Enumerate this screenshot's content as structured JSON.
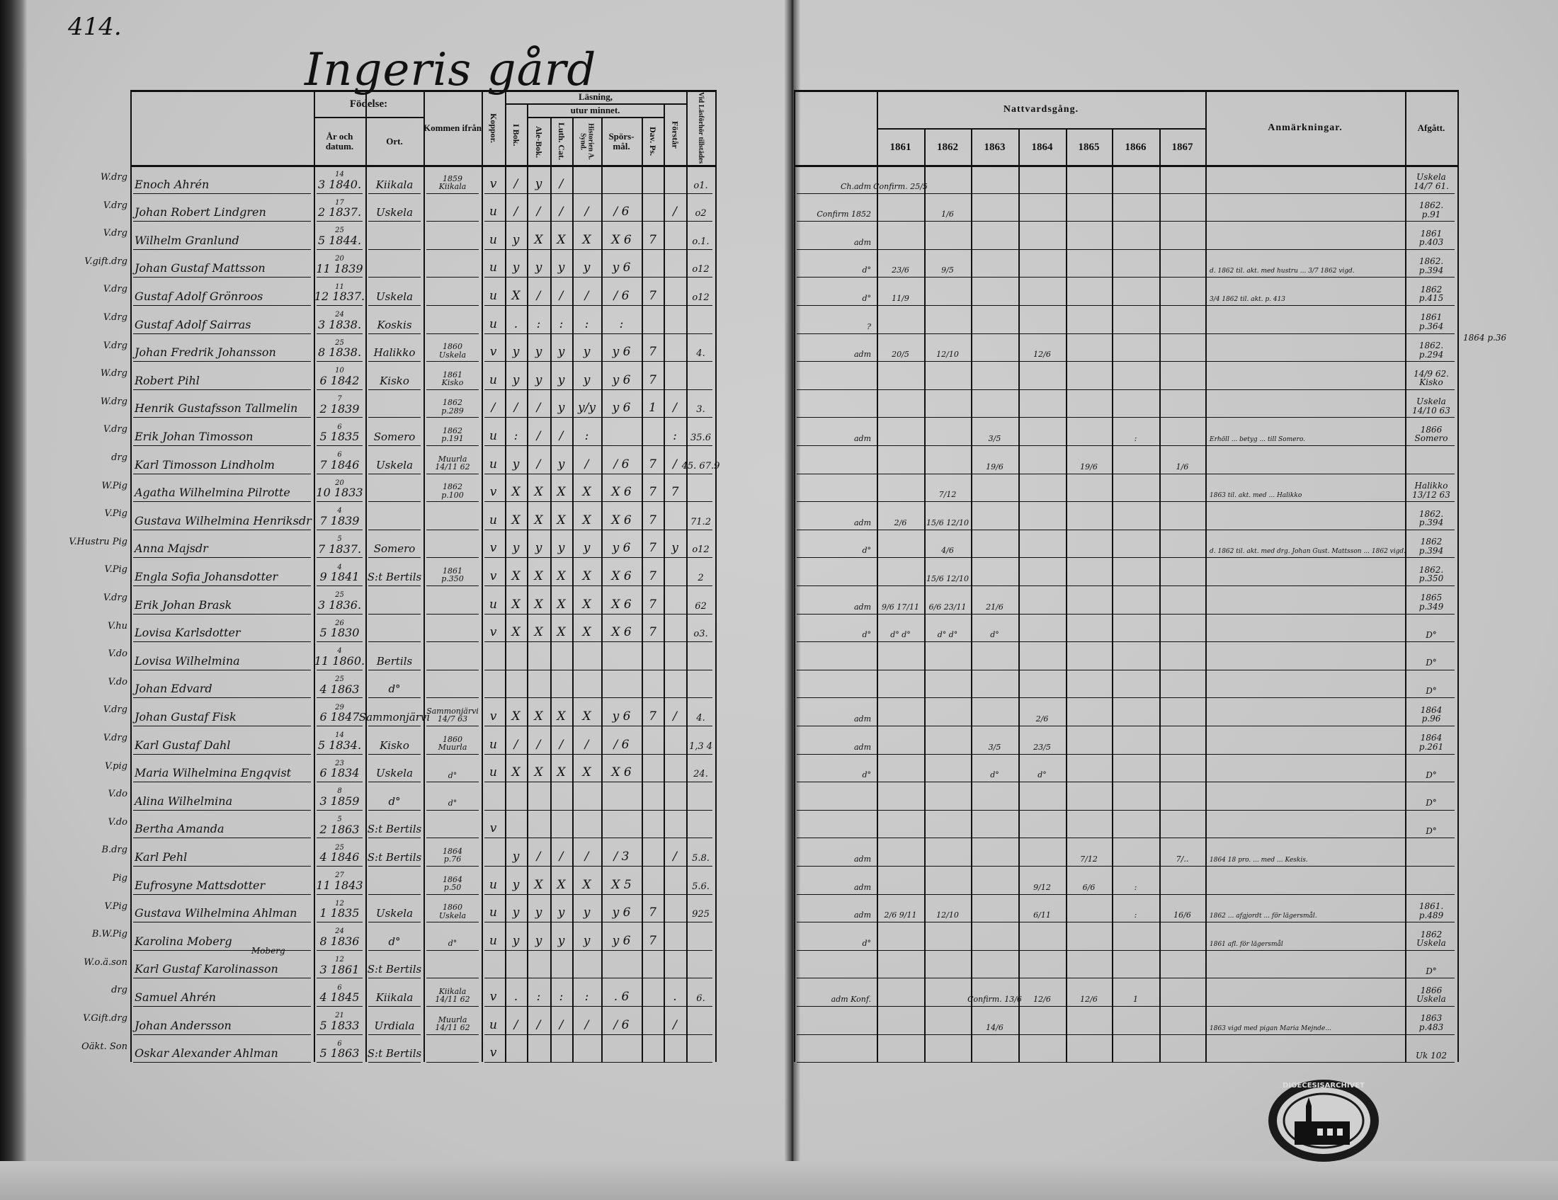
{
  "page_number": "414.",
  "title": "Ingeris gård",
  "header": {
    "fodelse": "Födelse:",
    "ar_datum": "År och datum.",
    "ort": "Ort.",
    "kommen_ifran": "Kommen ifrån",
    "koppor": "Koppor.",
    "lasning": "Läsning,",
    "utur_minnet": "utur minnet.",
    "i_bok": "I Bok.",
    "ale_bok": "Ale-Bok.",
    "luth_cat": "Luth. Cat.",
    "historien": "Historien A. Synd.",
    "sporsmal": "Spörs-mål.",
    "dav_ps": "Dav. Ps.",
    "forstar": "Förstår",
    "vid_lasforhor": "Vid Läsförhör tillstädes",
    "nattvardsgang": "Nattvardsgång.",
    "years": [
      "1861",
      "1862",
      "1863",
      "1864",
      "1865",
      "1866",
      "1867"
    ],
    "anmarkningar": "Anmärkningar.",
    "afgatt": "Afgått."
  },
  "rows": [
    {
      "prefix": "W.drg",
      "name": "Enoch Ahrén",
      "birth": [
        "14",
        "3 1840."
      ],
      "ort": "Kiikala",
      "from": [
        "1859",
        "Kiikala"
      ],
      "marks": [
        "v",
        "/",
        "y",
        "/",
        "",
        "",
        "",
        ""
      ],
      "vid": "o1.",
      "adm": "Ch.adm",
      "comm": [
        "Confirm. 25/5",
        "",
        "",
        "",
        "",
        "",
        ""
      ],
      "note": "",
      "afgatt": [
        "Uskela",
        "14/7 61."
      ]
    },
    {
      "prefix": "V.drg",
      "name": "Johan Robert Lindgren",
      "birth": [
        "17",
        "2 1837."
      ],
      "ort": "Uskela",
      "from": [
        "",
        ""
      ],
      "marks": [
        "u",
        "/",
        "/",
        "/",
        "/",
        "/ 6",
        "",
        "/"
      ],
      "vid": "o2",
      "adm": "Confirm 1852",
      "comm": [
        "",
        "1/6",
        "",
        "",
        "",
        "",
        ""
      ],
      "note": "",
      "afgatt": [
        "1862.",
        "p.91"
      ]
    },
    {
      "prefix": "V.drg",
      "name": "Wilhelm Granlund",
      "birth": [
        "25",
        "5 1844."
      ],
      "ort": "",
      "from": [
        "",
        ""
      ],
      "marks": [
        "u",
        "y",
        "X",
        "X",
        "X",
        "X 6",
        "7",
        ""
      ],
      "vid": "o.1.",
      "adm": "adm",
      "comm": [
        "",
        "",
        "",
        "",
        "",
        "",
        ""
      ],
      "note": "",
      "afgatt": [
        "1861",
        "p.403"
      ]
    },
    {
      "prefix": "V.gift.drg",
      "name": "Johan Gustaf Mattsson",
      "birth": [
        "20",
        "11 1839"
      ],
      "ort": "",
      "from": [
        "",
        ""
      ],
      "marks": [
        "u",
        "y",
        "y",
        "y",
        "y",
        "y 6",
        "",
        ""
      ],
      "vid": "o12",
      "adm": "d°",
      "comm": [
        "23/6",
        "9/5",
        "",
        "",
        "",
        "",
        ""
      ],
      "note": "d. 1862 til. akt. med hustru ... 3/7 1862 vigd.",
      "afgatt": [
        "1862.",
        "p.394"
      ]
    },
    {
      "prefix": "V.drg",
      "name": "Gustaf Adolf Grönroos",
      "birth": [
        "11",
        "12 1837."
      ],
      "ort": "Uskela",
      "from": [
        "",
        ""
      ],
      "marks": [
        "u",
        "X",
        "/",
        "/",
        "/",
        "/ 6",
        "7",
        ""
      ],
      "vid": "o12",
      "adm": "d°",
      "comm": [
        "11/9",
        "",
        "",
        "",
        "",
        "",
        ""
      ],
      "note": "3/4 1862 til. akt. p. 413",
      "afgatt": [
        "1862",
        "p.415"
      ]
    },
    {
      "prefix": "V.drg",
      "name": "Gustaf Adolf Sairras",
      "birth": [
        "24",
        "3 1838."
      ],
      "ort": "Koskis",
      "from": [
        "",
        ""
      ],
      "marks": [
        "u",
        ".",
        ":",
        ":",
        ":",
        ":",
        "",
        ""
      ],
      "vid": "",
      "adm": "?",
      "comm": [
        "",
        "",
        "",
        "",
        "",
        "",
        ""
      ],
      "note": "",
      "afgatt": [
        "1861",
        "p.364"
      ]
    },
    {
      "prefix": "V.drg",
      "name": "Johan Fredrik Johansson",
      "birth": [
        "25",
        "8 1838."
      ],
      "ort": "Halikko",
      "from": [
        "1860",
        "Uskela"
      ],
      "marks": [
        "v",
        "y",
        "y",
        "y",
        "y",
        "y 6",
        "7",
        ""
      ],
      "vid": "4.",
      "adm": "adm",
      "comm": [
        "20/5",
        "12/10",
        "",
        "12/6",
        "",
        "",
        ""
      ],
      "note": "",
      "afgatt": [
        "1862.",
        "p.294"
      ]
    },
    {
      "prefix": "W.drg",
      "name": "Robert Pihl",
      "birth": [
        "10",
        "6 1842"
      ],
      "ort": "Kisko",
      "from": [
        "1861",
        "Kisko"
      ],
      "marks": [
        "u",
        "y",
        "y",
        "y",
        "y",
        "y 6",
        "7",
        ""
      ],
      "vid": "",
      "adm": "",
      "comm": [
        "",
        "",
        "",
        "",
        "",
        "",
        ""
      ],
      "note": "",
      "afgatt": [
        "14/9 62.",
        "Kisko"
      ]
    },
    {
      "prefix": "W.drg",
      "name": "Henrik Gustafsson Tallmelin",
      "birth": [
        "7",
        "2 1839"
      ],
      "ort": "",
      "from": [
        "1862",
        "p.289"
      ],
      "marks": [
        "/",
        "/",
        "/",
        "y",
        "y/y",
        "y 6",
        "1",
        "/"
      ],
      "vid": "3.",
      "adm": "",
      "comm": [
        "",
        "",
        "",
        "",
        "",
        "",
        ""
      ],
      "note": "",
      "afgatt": [
        "Uskela",
        "14/10 63"
      ]
    },
    {
      "prefix": "V.drg",
      "name": "Erik Johan Timosson",
      "birth": [
        "6",
        "5 1835"
      ],
      "ort": "Somero",
      "from": [
        "1862",
        "p.191"
      ],
      "marks": [
        "u",
        ":",
        "/",
        "/",
        ":",
        "",
        "",
        ":"
      ],
      "vid": "35.6",
      "adm": "adm",
      "comm": [
        "",
        "",
        "3/5",
        "",
        "",
        ":",
        ""
      ],
      "note": "Erhöll ... betyg ... till Somero.",
      "afgatt": [
        "1866",
        "Somero"
      ]
    },
    {
      "prefix": "drg",
      "name": "Karl Timosson Lindholm",
      "birth": [
        "6",
        "7 1846"
      ],
      "ort": "Uskela",
      "from": [
        "Muurla",
        "14/11 62"
      ],
      "marks": [
        "u",
        "y",
        "/",
        "y",
        "/",
        "/ 6",
        "7",
        "/"
      ],
      "vid": "45. 67.9",
      "adm": "",
      "comm": [
        "",
        "",
        "19/6",
        "",
        "19/6",
        "",
        "1/6"
      ],
      "note": "",
      "afgatt": [
        "",
        ""
      ]
    },
    {
      "prefix": "W.Pig",
      "name": "Agatha Wilhelmina Pilrotte",
      "birth": [
        "20",
        "10 1833"
      ],
      "ort": "",
      "from": [
        "1862",
        "p.100"
      ],
      "marks": [
        "v",
        "X",
        "X",
        "X",
        "X",
        "X 6",
        "7",
        "7"
      ],
      "vid": "",
      "adm": "",
      "comm": [
        "",
        "7/12",
        "",
        "",
        "",
        "",
        ""
      ],
      "note": "1863 til. akt. med ... Halikko",
      "afgatt": [
        "Halikko",
        "13/12 63"
      ]
    },
    {
      "prefix": "V.Pig",
      "name": "Gustava Wilhelmina Henriksdr",
      "birth": [
        "4",
        "7 1839"
      ],
      "ort": "",
      "from": [
        "",
        ""
      ],
      "marks": [
        "u",
        "X",
        "X",
        "X",
        "X",
        "X 6",
        "7",
        ""
      ],
      "vid": "71.2",
      "adm": "adm",
      "comm": [
        "2/6",
        "15/6 12/10",
        "",
        "",
        "",
        "",
        ""
      ],
      "note": "",
      "afgatt": [
        "1862.",
        "p.394"
      ]
    },
    {
      "prefix": "V.Hustru Pig",
      "name": "Anna Majsdr",
      "birth": [
        "5",
        "7 1837."
      ],
      "ort": "Somero",
      "from": [
        "",
        ""
      ],
      "marks": [
        "v",
        "y",
        "y",
        "y",
        "y",
        "y 6",
        "7",
        "y"
      ],
      "vid": "o12",
      "adm": "d°",
      "comm": [
        "",
        "4/6",
        "",
        "",
        "",
        "",
        ""
      ],
      "note": "d. 1862 til. akt. med drg. Johan Gust. Mattsson ... 1862 vigd.",
      "afgatt": [
        "1862",
        "p.394"
      ]
    },
    {
      "prefix": "V.Pig",
      "name": "Engla Sofia Johansdotter",
      "birth": [
        "4",
        "9 1841"
      ],
      "ort": "S:t Bertils",
      "from": [
        "1861",
        "p.350"
      ],
      "marks": [
        "v",
        "X",
        "X",
        "X",
        "X",
        "X 6",
        "7",
        ""
      ],
      "vid": "2",
      "adm": "",
      "comm": [
        "",
        "15/6 12/10",
        "",
        "",
        "",
        "",
        ""
      ],
      "note": "",
      "afgatt": [
        "1862.",
        "p.350"
      ]
    },
    {
      "prefix": "V.drg",
      "name": "Erik Johan Brask",
      "birth": [
        "25",
        "3 1836."
      ],
      "ort": "",
      "from": [
        "",
        ""
      ],
      "marks": [
        "u",
        "X",
        "X",
        "X",
        "X",
        "X 6",
        "7",
        ""
      ],
      "vid": "62",
      "adm": "adm",
      "comm": [
        "9/6 17/11",
        "6/6 23/11",
        "21/6",
        "",
        "",
        "",
        ""
      ],
      "note": "",
      "afgatt": [
        "1865",
        "p.349"
      ]
    },
    {
      "prefix": "V.hu",
      "name": "Lovisa Karlsdotter",
      "birth": [
        "26",
        "5 1830"
      ],
      "ort": "",
      "from": [
        "",
        ""
      ],
      "marks": [
        "v",
        "X",
        "X",
        "X",
        "X",
        "X 6",
        "7",
        ""
      ],
      "vid": "o3.",
      "adm": "d°",
      "comm": [
        "d° d°",
        "d° d°",
        "d°",
        "",
        "",
        "",
        ""
      ],
      "note": "",
      "afgatt": [
        "D°",
        ""
      ]
    },
    {
      "prefix": "V.do",
      "name": "Lovisa Wilhelmina",
      "birth": [
        "4",
        "11 1860."
      ],
      "ort": "Bertils",
      "from": [
        "",
        ""
      ],
      "marks": [
        "",
        "",
        "",
        "",
        "",
        "",
        "",
        ""
      ],
      "vid": "",
      "adm": "",
      "comm": [
        "",
        "",
        "",
        "",
        "",
        "",
        ""
      ],
      "note": "",
      "afgatt": [
        "D°",
        ""
      ]
    },
    {
      "prefix": "V.do",
      "name": "Johan Edvard",
      "birth": [
        "25",
        "4 1863"
      ],
      "ort": "d°",
      "from": [
        "",
        ""
      ],
      "marks": [
        "",
        "",
        "",
        "",
        "",
        "",
        "",
        ""
      ],
      "vid": "",
      "adm": "",
      "comm": [
        "",
        "",
        "",
        "",
        "",
        "",
        ""
      ],
      "note": "",
      "afgatt": [
        "D°",
        ""
      ]
    },
    {
      "prefix": "V.drg",
      "name": "Johan Gustaf Fisk",
      "birth": [
        "29",
        "6 1847"
      ],
      "ort": "Sammonjärvi",
      "from": [
        "Sammonjärvi",
        "14/7 63"
      ],
      "marks": [
        "v",
        "X",
        "X",
        "X",
        "X",
        "y 6",
        "7",
        "/"
      ],
      "vid": "4.",
      "adm": "adm",
      "comm": [
        "",
        "",
        "",
        "2/6",
        "",
        "",
        ""
      ],
      "note": "",
      "afgatt": [
        "1864",
        "p.96"
      ]
    },
    {
      "prefix": "V.drg",
      "name": "Karl Gustaf Dahl",
      "birth": [
        "14",
        "5 1834."
      ],
      "ort": "Kisko",
      "from": [
        "1860",
        "Muurla"
      ],
      "marks": [
        "u",
        "/",
        "/",
        "/",
        "/",
        "/ 6",
        "",
        ""
      ],
      "vid": "1,3 4",
      "adm": "adm",
      "comm": [
        "",
        "",
        "3/5",
        "23/5",
        "",
        "",
        ""
      ],
      "note": "",
      "afgatt": [
        "1864",
        "p.261"
      ]
    },
    {
      "prefix": "V.pig",
      "name": "Maria Wilhelmina Engqvist",
      "birth": [
        "23",
        "6 1834"
      ],
      "ort": "Uskela",
      "from": [
        "d°",
        ""
      ],
      "marks": [
        "u",
        "X",
        "X",
        "X",
        "X",
        "X 6",
        "",
        ""
      ],
      "vid": "24.",
      "adm": "d°",
      "comm": [
        "",
        "",
        "d°",
        "d°",
        "",
        "",
        ""
      ],
      "note": "",
      "afgatt": [
        "D°",
        ""
      ]
    },
    {
      "prefix": "V.do",
      "name": "Alina Wilhelmina",
      "birth": [
        "8",
        "3 1859"
      ],
      "ort": "d°",
      "from": [
        "d°",
        ""
      ],
      "marks": [
        "",
        "",
        "",
        "",
        "",
        "",
        "",
        ""
      ],
      "vid": "",
      "adm": "",
      "comm": [
        "",
        "",
        "",
        "",
        "",
        "",
        ""
      ],
      "note": "",
      "afgatt": [
        "D°",
        ""
      ]
    },
    {
      "prefix": "V.do",
      "name": "Bertha Amanda",
      "birth": [
        "5",
        "2 1863"
      ],
      "ort": "S:t Bertils",
      "from": [
        "",
        ""
      ],
      "marks": [
        "v",
        "",
        "",
        "",
        "",
        "",
        "",
        ""
      ],
      "vid": "",
      "adm": "",
      "comm": [
        "",
        "",
        "",
        "",
        "",
        "",
        ""
      ],
      "note": "",
      "afgatt": [
        "D°",
        ""
      ]
    },
    {
      "prefix": "B.drg",
      "name": "Karl Pehl",
      "birth": [
        "25",
        "4 1846"
      ],
      "ort": "S:t Bertils",
      "from": [
        "1864",
        "p.76"
      ],
      "marks": [
        "",
        "y",
        "/",
        "/",
        "/",
        "/ 3",
        "",
        "/"
      ],
      "vid": "5.8.",
      "adm": "adm",
      "comm": [
        "",
        "",
        "",
        "",
        "7/12",
        "",
        "7/.."
      ],
      "note": "1864 18 pro. ... med ... Keskis.",
      "afgatt": [
        "",
        ""
      ]
    },
    {
      "prefix": "Pig",
      "name": "Eufrosyne Mattsdotter",
      "birth": [
        "27",
        "11 1843"
      ],
      "ort": "",
      "from": [
        "1864",
        "p.50"
      ],
      "marks": [
        "u",
        "y",
        "X",
        "X",
        "X",
        "X 5",
        "",
        ""
      ],
      "vid": "5.6.",
      "adm": "adm",
      "comm": [
        "",
        "",
        "",
        "9/12",
        "6/6",
        ":",
        ""
      ],
      "note": "",
      "afgatt": [
        "",
        ""
      ]
    },
    {
      "prefix": "V.Pig",
      "name": "Gustava Wilhelmina Ahlman",
      "birth": [
        "12",
        "1 1835"
      ],
      "ort": "Uskela",
      "from": [
        "1860",
        "Uskela"
      ],
      "marks": [
        "u",
        "y",
        "y",
        "y",
        "y",
        "y 6",
        "7",
        ""
      ],
      "vid": "925",
      "adm": "adm",
      "comm": [
        "2/6 9/11",
        "12/10",
        "",
        "6/11",
        "",
        ":",
        "16/6"
      ],
      "note": "1862 ... afgjordt ... för lägersmål.",
      "afgatt": [
        "1861.",
        "p.489"
      ]
    },
    {
      "prefix": "B.W.Pig",
      "name": "Karolina Moberg",
      "birth": [
        "24",
        "8 1836"
      ],
      "ort": "d°",
      "from": [
        "d°",
        ""
      ],
      "marks": [
        "u",
        "y",
        "y",
        "y",
        "y",
        "y 6",
        "7",
        ""
      ],
      "vid": "",
      "adm": "d°",
      "comm": [
        "",
        "",
        "",
        "",
        "",
        "",
        ""
      ],
      "note": "1861 afl. för lägersmål",
      "afgatt": [
        "1862",
        "Uskela"
      ]
    },
    {
      "prefix": "W.o.ä.son",
      "name": "Karl Gustaf Karolinasson",
      "name_sup": "Moberg",
      "birth": [
        "12",
        "3 1861"
      ],
      "ort": "S:t Bertils",
      "from": [
        "",
        ""
      ],
      "marks": [
        "",
        "",
        "",
        "",
        "",
        "",
        "",
        ""
      ],
      "vid": "",
      "adm": "",
      "comm": [
        "",
        "",
        "",
        "",
        "",
        "",
        ""
      ],
      "note": "",
      "afgatt": [
        "D°",
        ""
      ]
    },
    {
      "prefix": "drg",
      "name": "Samuel Ahrén",
      "birth": [
        "6",
        "4 1845"
      ],
      "ort": "Kiikala",
      "from": [
        "Kiikala",
        "14/11 62"
      ],
      "marks": [
        "v",
        ".",
        ":",
        ":",
        ":",
        ". 6",
        "",
        "."
      ],
      "vid": "6.",
      "adm": "adm Konf.",
      "comm": [
        "",
        "",
        "Confirm. 13/6",
        "12/6",
        "12/6",
        "1",
        ""
      ],
      "note": "",
      "afgatt": [
        "1866",
        "Uskela"
      ]
    },
    {
      "prefix": "V.Gift.drg",
      "name": "Johan Andersson",
      "birth": [
        "21",
        "5 1833"
      ],
      "ort": "Urdiala",
      "from": [
        "Muurla",
        "14/11 62"
      ],
      "marks": [
        "u",
        "/",
        "/",
        "/",
        "/",
        "/ 6",
        "",
        "/"
      ],
      "vid": "",
      "adm": "",
      "comm": [
        "",
        "",
        "14/6",
        "",
        "",
        "",
        ""
      ],
      "note": "1863 vigd med pigan Maria Mejnde...",
      "afgatt": [
        "1863",
        "p.483"
      ]
    },
    {
      "prefix": "Oäkt. Son",
      "name": "Oskar Alexander Ahlman",
      "birth": [
        "6",
        "5 1863"
      ],
      "ort": "S:t Bertils",
      "from": [
        "",
        ""
      ],
      "marks": [
        "v",
        "",
        "",
        "",
        "",
        "",
        "",
        ""
      ],
      "vid": "",
      "adm": "",
      "comm": [
        "",
        "",
        "",
        "",
        "",
        "",
        ""
      ],
      "note": "",
      "afgatt": [
        "Uk 102",
        ""
      ]
    }
  ],
  "margin_note": "1864 p.36",
  "stamp": {
    "text": "DIOECESISARCHIVET"
  }
}
